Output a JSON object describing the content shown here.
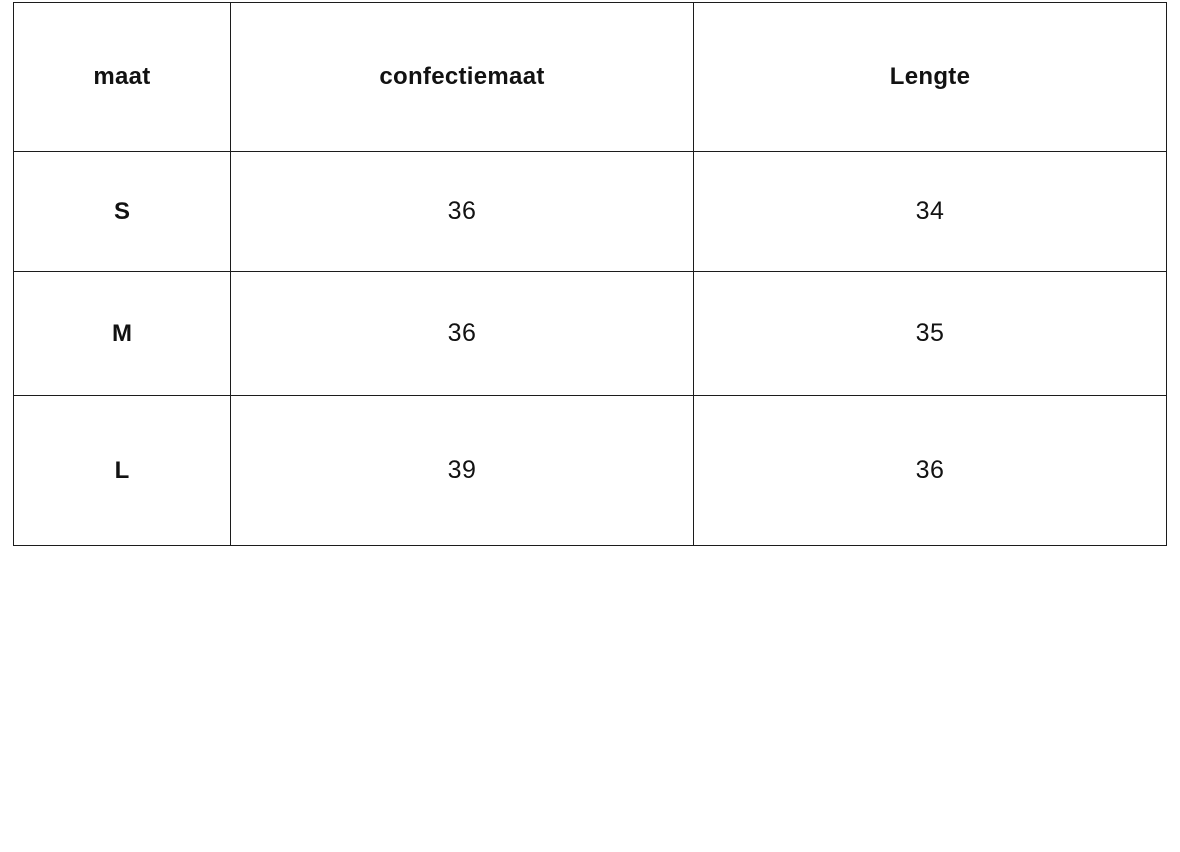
{
  "table": {
    "headers": [
      "maat",
      "confectiemaat",
      "Lengte"
    ],
    "rows": [
      {
        "size": "S",
        "confectiemaat": "36",
        "lengte": "34"
      },
      {
        "size": "M",
        "confectiemaat": "36",
        "lengte": "35"
      },
      {
        "size": "L",
        "confectiemaat": "39",
        "lengte": "36"
      }
    ]
  },
  "colors": {
    "background": "#ffffff",
    "border": "#1c1c1c",
    "text": "#121212"
  },
  "chart_data": {
    "type": "table",
    "title": "",
    "columns": [
      "maat",
      "confectiemaat",
      "Lengte"
    ],
    "rows": [
      [
        "S",
        "36",
        "34"
      ],
      [
        "M",
        "36",
        "35"
      ],
      [
        "L",
        "39",
        "36"
      ]
    ]
  }
}
